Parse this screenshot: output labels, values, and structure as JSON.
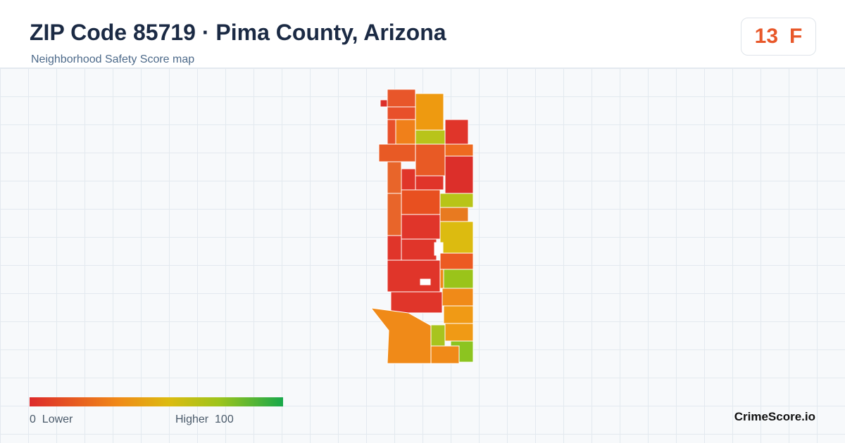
{
  "header": {
    "title": "ZIP Code 85719 · Pima County, Arizona",
    "subtitle": "Neighborhood Safety Score map"
  },
  "score": {
    "value": 13,
    "grade": "F"
  },
  "legend": {
    "min": 0,
    "min_label": "Lower",
    "max_label": "Higher",
    "max": 100
  },
  "brand": "CrimeScore.io"
}
